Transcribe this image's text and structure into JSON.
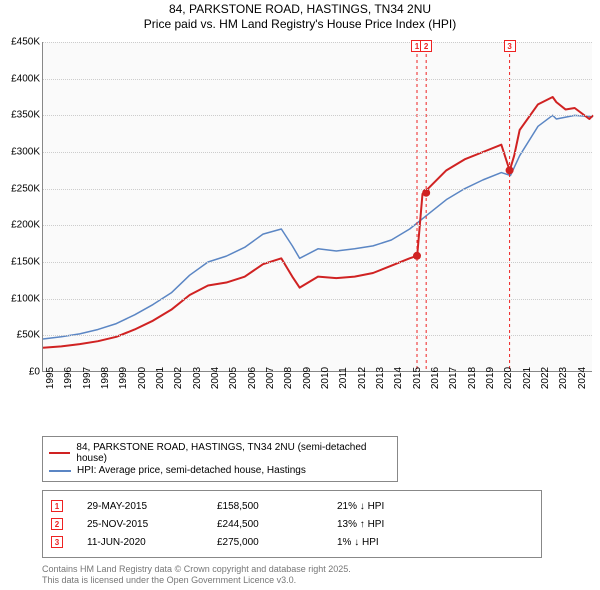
{
  "title": {
    "line1": "84, PARKSTONE ROAD, HASTINGS, TN34 2NU",
    "line2": "Price paid vs. HM Land Registry's House Price Index (HPI)"
  },
  "chart": {
    "type": "line",
    "background_color": "#fafafa",
    "grid_color": "#cccccc",
    "axis_color": "#888888",
    "ylim": [
      0,
      450000
    ],
    "ytick_step": 50000,
    "ytick_labels": [
      "£0",
      "£50K",
      "£100K",
      "£150K",
      "£200K",
      "£250K",
      "£300K",
      "£350K",
      "£400K",
      "£450K"
    ],
    "xlim": [
      1995,
      2025
    ],
    "xticks": [
      1995,
      1996,
      1997,
      1998,
      1999,
      2000,
      2001,
      2002,
      2003,
      2004,
      2005,
      2006,
      2007,
      2008,
      2009,
      2010,
      2011,
      2012,
      2013,
      2014,
      2015,
      2016,
      2017,
      2018,
      2019,
      2020,
      2021,
      2022,
      2023,
      2024
    ],
    "series": [
      {
        "name": "84, PARKSTONE ROAD, HASTINGS, TN34 2NU (semi-detached house)",
        "color": "#d02222",
        "line_width": 2,
        "data": [
          [
            1995,
            33000
          ],
          [
            1996,
            35000
          ],
          [
            1997,
            38000
          ],
          [
            1998,
            42000
          ],
          [
            1999,
            48000
          ],
          [
            2000,
            58000
          ],
          [
            2001,
            70000
          ],
          [
            2002,
            85000
          ],
          [
            2003,
            105000
          ],
          [
            2004,
            118000
          ],
          [
            2005,
            122000
          ],
          [
            2006,
            130000
          ],
          [
            2007,
            147000
          ],
          [
            2008,
            155000
          ],
          [
            2008.6,
            130000
          ],
          [
            2009,
            115000
          ],
          [
            2010,
            130000
          ],
          [
            2011,
            128000
          ],
          [
            2012,
            130000
          ],
          [
            2013,
            135000
          ],
          [
            2014,
            145000
          ],
          [
            2015,
            155000
          ],
          [
            2015.4,
            158500
          ],
          [
            2015.41,
            158500
          ],
          [
            2015.7,
            243000
          ],
          [
            2015.9,
            244500
          ],
          [
            2016,
            250000
          ],
          [
            2017,
            275000
          ],
          [
            2018,
            290000
          ],
          [
            2019,
            300000
          ],
          [
            2020,
            310000
          ],
          [
            2020.45,
            275000
          ],
          [
            2020.46,
            275000
          ],
          [
            2020.7,
            295000
          ],
          [
            2021,
            330000
          ],
          [
            2022,
            365000
          ],
          [
            2022.8,
            375000
          ],
          [
            2023,
            368000
          ],
          [
            2023.5,
            358000
          ],
          [
            2024,
            360000
          ],
          [
            2024.8,
            345000
          ],
          [
            2025,
            350000
          ]
        ]
      },
      {
        "name": "HPI: Average price, semi-detached house, Hastings",
        "color": "#5b86c4",
        "line_width": 1.5,
        "data": [
          [
            1995,
            45000
          ],
          [
            1996,
            48000
          ],
          [
            1997,
            52000
          ],
          [
            1998,
            58000
          ],
          [
            1999,
            66000
          ],
          [
            2000,
            78000
          ],
          [
            2001,
            92000
          ],
          [
            2002,
            108000
          ],
          [
            2003,
            132000
          ],
          [
            2004,
            150000
          ],
          [
            2005,
            158000
          ],
          [
            2006,
            170000
          ],
          [
            2007,
            188000
          ],
          [
            2008,
            195000
          ],
          [
            2008.6,
            172000
          ],
          [
            2009,
            155000
          ],
          [
            2010,
            168000
          ],
          [
            2011,
            165000
          ],
          [
            2012,
            168000
          ],
          [
            2013,
            172000
          ],
          [
            2014,
            180000
          ],
          [
            2015,
            195000
          ],
          [
            2016,
            215000
          ],
          [
            2017,
            235000
          ],
          [
            2018,
            250000
          ],
          [
            2019,
            262000
          ],
          [
            2020,
            272000
          ],
          [
            2020.5,
            268000
          ],
          [
            2021,
            295000
          ],
          [
            2022,
            335000
          ],
          [
            2022.8,
            350000
          ],
          [
            2023,
            345000
          ],
          [
            2024,
            350000
          ],
          [
            2025,
            348000
          ]
        ]
      }
    ],
    "markers": [
      {
        "id": "1",
        "x": 2015.4,
        "y": 158500
      },
      {
        "id": "2",
        "x": 2015.9,
        "y": 244500
      },
      {
        "id": "3",
        "x": 2020.45,
        "y": 275000
      }
    ],
    "marker_style": {
      "border_color": "#ee2222",
      "text_color": "#ee2222",
      "dash": "3,3"
    }
  },
  "legend": {
    "items": [
      {
        "color": "#d02222",
        "label": "84, PARKSTONE ROAD, HASTINGS, TN34 2NU (semi-detached house)"
      },
      {
        "color": "#5b86c4",
        "label": "HPI: Average price, semi-detached house, Hastings"
      }
    ]
  },
  "transactions": [
    {
      "id": "1",
      "date": "29-MAY-2015",
      "price": "£158,500",
      "delta": "21% ↓ HPI"
    },
    {
      "id": "2",
      "date": "25-NOV-2015",
      "price": "£244,500",
      "delta": "13% ↑ HPI"
    },
    {
      "id": "3",
      "date": "11-JUN-2020",
      "price": "£275,000",
      "delta": "1% ↓ HPI"
    }
  ],
  "attribution": {
    "line1": "Contains HM Land Registry data © Crown copyright and database right 2025.",
    "line2": "This data is licensed under the Open Government Licence v3.0."
  }
}
